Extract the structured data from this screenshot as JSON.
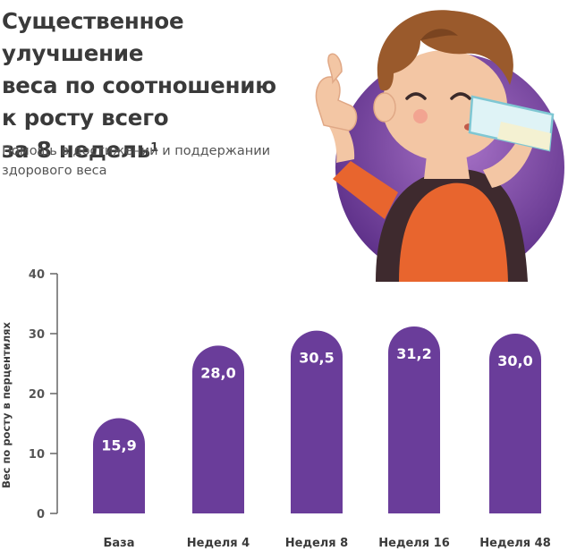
{
  "header": {
    "title_line1": "Существенное улучшение",
    "title_line2": "веса по соотношению",
    "title_line3": "к росту всего",
    "title_line4": "за 8 недель",
    "title_sup": "1",
    "subtitle_line1": "Помощь в достижении и поддержании",
    "subtitle_line2": "здорового веса"
  },
  "colors": {
    "bar": "#6a3d9a",
    "circle_light": "#a772c7",
    "circle_dark": "#5a2d86",
    "text_dark": "#3a3a3a",
    "axis_text": "#555555"
  },
  "illustration": {
    "icon": "boy-drinking-milk-thumbs-up-icon"
  },
  "chart_data": {
    "type": "bar",
    "categories": [
      "База",
      "Неделя 4",
      "Неделя 8",
      "Неделя 16",
      "Неделя 48"
    ],
    "values": [
      15.9,
      28.0,
      30.5,
      31.2,
      30.0
    ],
    "value_labels": [
      "15,9",
      "28,0",
      "30,5",
      "31,2",
      "30,0"
    ],
    "ylabel": "Вес по росту в перцентилях",
    "ylim": [
      0,
      40
    ],
    "yticks": [
      0,
      10,
      20,
      30,
      40
    ],
    "grid": false
  }
}
